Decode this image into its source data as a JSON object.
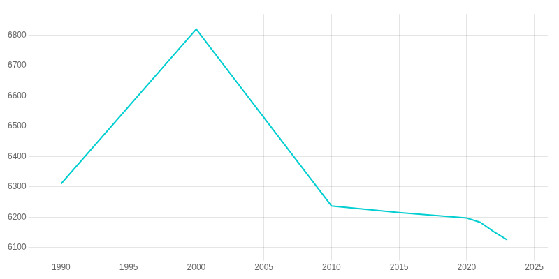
{
  "chart_data": {
    "type": "line",
    "x": [
      1990,
      2000,
      2010,
      2015,
      2020,
      2021,
      2022,
      2023
    ],
    "values": [
      6310,
      6820,
      6237,
      6215,
      6197,
      6183,
      6152,
      6125
    ],
    "color": "#00CED1",
    "xlim": [
      1988,
      2026
    ],
    "ylim": [
      6075,
      6870
    ],
    "xticks": [
      1990,
      1995,
      2000,
      2005,
      2010,
      2015,
      2020,
      2025
    ],
    "yticks": [
      6100,
      6200,
      6300,
      6400,
      6500,
      6600,
      6700,
      6800
    ],
    "grid": true
  }
}
